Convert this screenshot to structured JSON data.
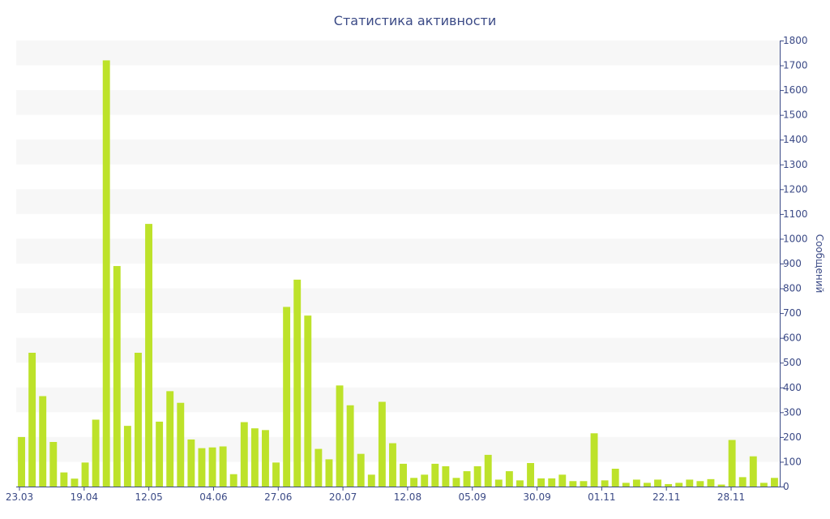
{
  "chart_data": {
    "type": "bar",
    "title": "Статистика активности",
    "ylabel": "Сообщений",
    "xlabel": "",
    "ylim": [
      0,
      1800
    ],
    "yticks": [
      0,
      100,
      200,
      300,
      400,
      500,
      600,
      700,
      800,
      900,
      1000,
      1100,
      1200,
      1300,
      1400,
      1500,
      1600,
      1700,
      1800
    ],
    "y_axis_side": "right",
    "grid": "alternating horizontal bands",
    "color": "#bde22a",
    "x_tick_labels": [
      "23.03",
      "19.04",
      "12.05",
      "04.06",
      "27.06",
      "20.07",
      "12.08",
      "05.09",
      "30.09",
      "01.11",
      "22.11",
      "28.11"
    ],
    "values": [
      200,
      540,
      365,
      180,
      57,
      32,
      97,
      270,
      1720,
      890,
      245,
      540,
      1060,
      262,
      385,
      338,
      190,
      155,
      158,
      162,
      50,
      260,
      235,
      228,
      97,
      725,
      835,
      690,
      152,
      110,
      408,
      328,
      132,
      48,
      342,
      175,
      92,
      35,
      48,
      92,
      82,
      35,
      62,
      82,
      128,
      28,
      62,
      25,
      95,
      33,
      33,
      48,
      22,
      22,
      215,
      25,
      72,
      15,
      28,
      15,
      28,
      10,
      15,
      28,
      22,
      30,
      8,
      188,
      38,
      122,
      15,
      35
    ]
  }
}
